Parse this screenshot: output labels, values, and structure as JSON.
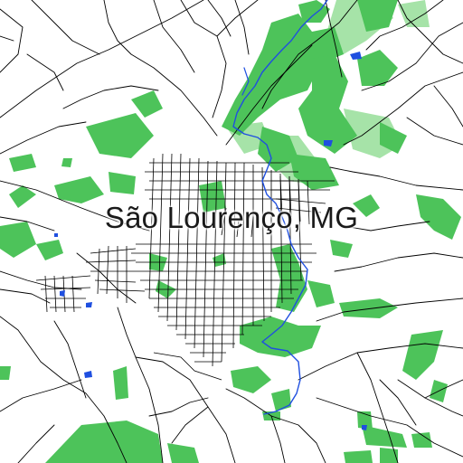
{
  "map": {
    "title": "São Lourenço, MG",
    "colors": {
      "background": "#ffffff",
      "park": "#4dc35a",
      "park_light": "#a6e3a8",
      "road": "#000000",
      "water": "#1f4fe0"
    }
  }
}
